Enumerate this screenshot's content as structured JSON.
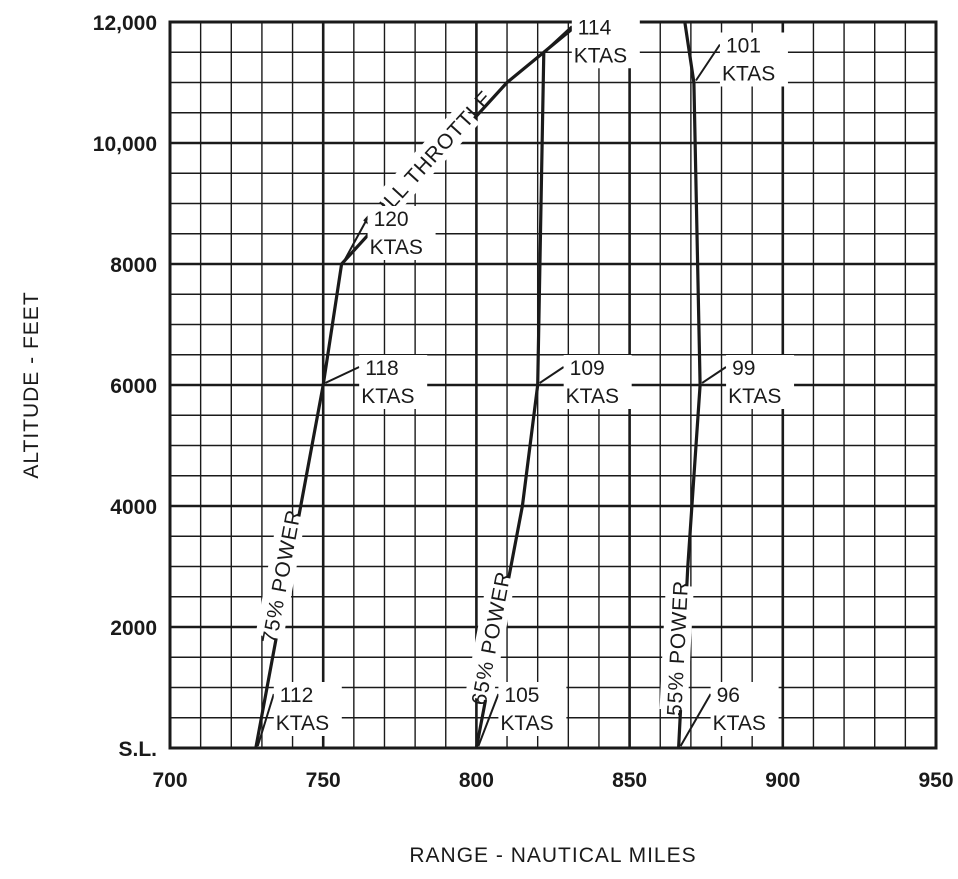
{
  "chart_data": {
    "type": "line",
    "xlabel": "RANGE - NAUTICAL MILES",
    "ylabel": "ALTITUDE - FEET",
    "xlim": [
      700,
      950
    ],
    "ylim": [
      0,
      12000
    ],
    "x_ticks": [
      {
        "value": 700,
        "label": "700"
      },
      {
        "value": 750,
        "label": "750"
      },
      {
        "value": 800,
        "label": "800"
      },
      {
        "value": 850,
        "label": "850"
      },
      {
        "value": 900,
        "label": "900"
      },
      {
        "value": 950,
        "label": "950"
      }
    ],
    "y_ticks": [
      {
        "value": 0,
        "label": "S.L."
      },
      {
        "value": 2000,
        "label": "2000"
      },
      {
        "value": 4000,
        "label": "4000"
      },
      {
        "value": 6000,
        "label": "6000"
      },
      {
        "value": 8000,
        "label": "8000"
      },
      {
        "value": 10000,
        "label": "10,000"
      },
      {
        "value": 12000,
        "label": "12,000"
      }
    ],
    "grid": true,
    "series": [
      {
        "name": "75% POWER",
        "x": [
          728,
          750,
          756
        ],
        "y": [
          0,
          6000,
          8000
        ]
      },
      {
        "name": "FULL THROTTLE",
        "x": [
          756,
          810,
          834
        ],
        "y": [
          8000,
          11000,
          12000
        ]
      },
      {
        "name": "65% POWER",
        "x": [
          800,
          815,
          820,
          822
        ],
        "y": [
          0,
          4000,
          6000,
          11500
        ]
      },
      {
        "name": "55% POWER",
        "x": [
          866,
          869,
          873,
          871,
          868
        ],
        "y": [
          0,
          3000,
          6000,
          11000,
          12000
        ]
      }
    ],
    "annotations": [
      {
        "speed": "112",
        "unit": "KTAS",
        "x": 728,
        "y": 0
      },
      {
        "speed": "118",
        "unit": "KTAS",
        "x": 750,
        "y": 6000
      },
      {
        "speed": "120",
        "unit": "KTAS",
        "x": 756,
        "y": 8000
      },
      {
        "speed": "105",
        "unit": "KTAS",
        "x": 800,
        "y": 0
      },
      {
        "speed": "109",
        "unit": "KTAS",
        "x": 820,
        "y": 6000
      },
      {
        "speed": "114",
        "unit": "KTAS",
        "x": 822,
        "y": 11500
      },
      {
        "speed": "96",
        "unit": "KTAS",
        "x": 866,
        "y": 0
      },
      {
        "speed": "99",
        "unit": "KTAS",
        "x": 873,
        "y": 6000
      },
      {
        "speed": "101",
        "unit": "KTAS",
        "x": 871,
        "y": 11000
      }
    ]
  }
}
